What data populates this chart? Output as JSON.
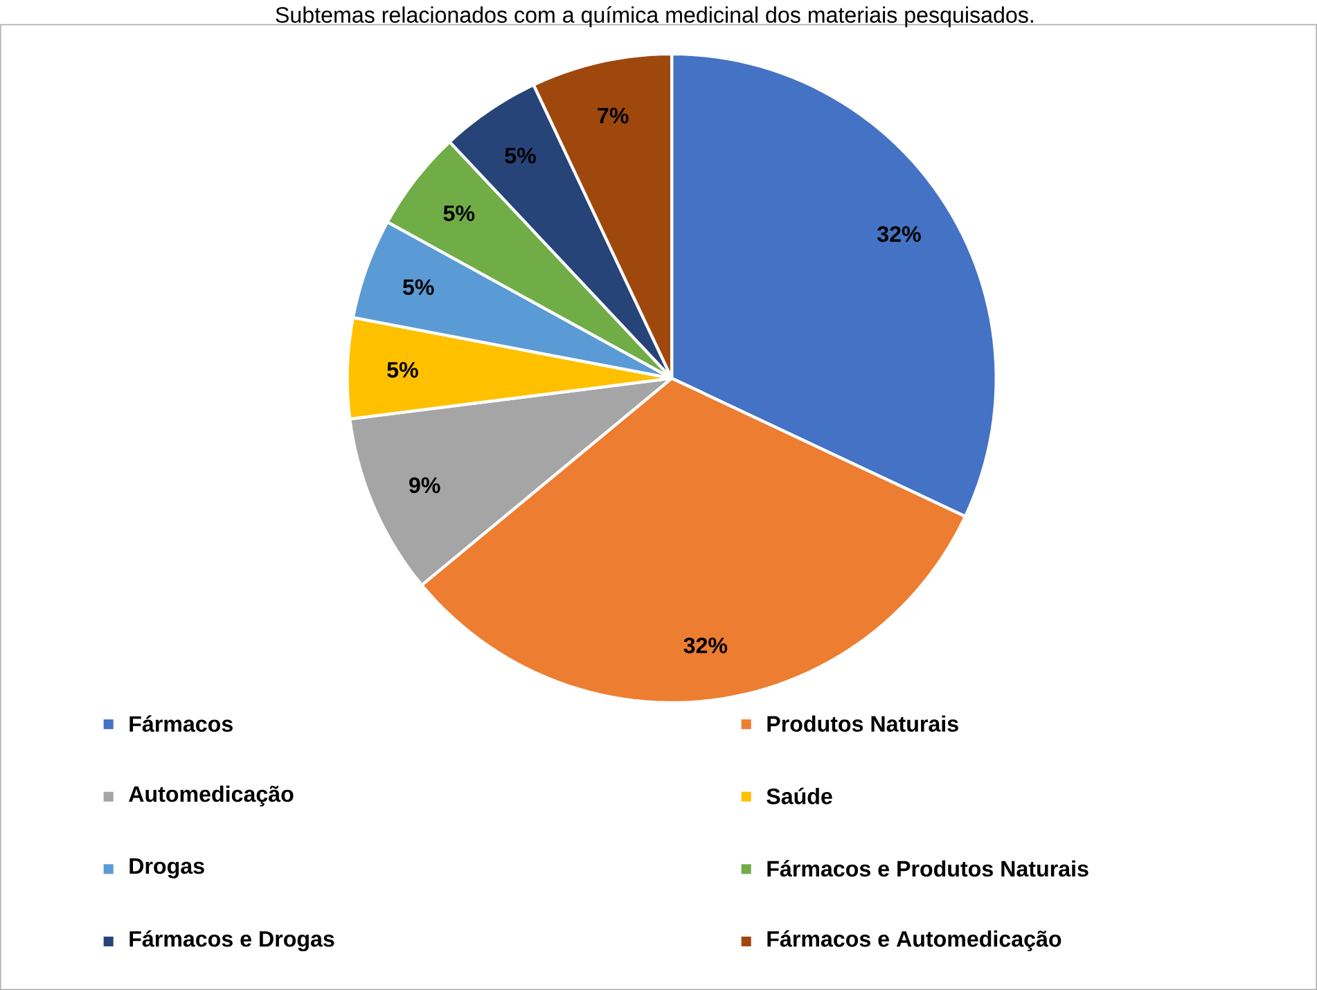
{
  "chart_data": {
    "type": "pie",
    "title": "Subtemas relacionados com a química medicinal dos materiais pesquisados.",
    "categories": [
      "Fármacos",
      "Produtos Naturais",
      "Automedicação",
      "Saúde",
      "Drogas",
      "Fármacos e Produtos Naturais",
      "Fármacos e Drogas",
      "Fármacos e Automedicação"
    ],
    "values": [
      32,
      32,
      9,
      5,
      5,
      5,
      5,
      7
    ],
    "value_labels": [
      "32%",
      "32%",
      "9%",
      "5%",
      "5%",
      "5%",
      "5%",
      "7%"
    ],
    "colors": [
      "#4472c4",
      "#ed7d31",
      "#a5a5a5",
      "#ffc000",
      "#5b9bd5",
      "#70ad47",
      "#264478",
      "#9e480e"
    ],
    "legend": "bottom"
  }
}
